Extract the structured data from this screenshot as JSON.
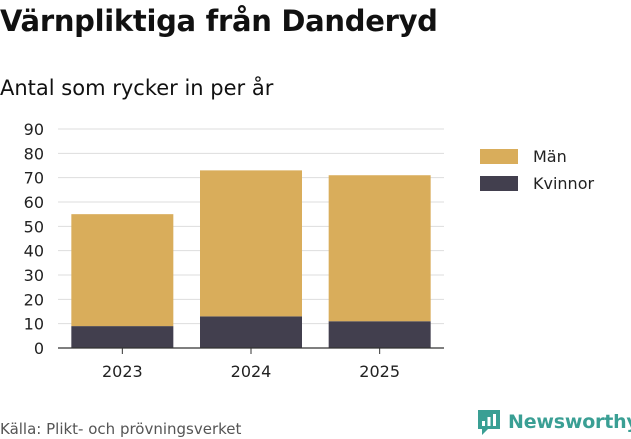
{
  "title": "Värnpliktiga från Danderyd",
  "subtitle": "Antal som rycker in per år",
  "source": "Källa: Plikt- och prövningsverket",
  "brand": {
    "name": "Newsworthy",
    "color": "#3a9f94",
    "icon": "newsworthy-logo-icon"
  },
  "chart_data": {
    "type": "bar",
    "stacked": true,
    "categories": [
      "2023",
      "2024",
      "2025"
    ],
    "series": [
      {
        "name": "Kvinnor",
        "values": [
          9,
          13,
          11
        ],
        "color": "#423f4e"
      },
      {
        "name": "Män",
        "values": [
          46,
          60,
          60
        ],
        "color": "#d9ad5b"
      }
    ],
    "totals": [
      55,
      73,
      71
    ],
    "title": "Värnpliktiga från Danderyd",
    "subtitle": "Antal som rycker in per år",
    "xlabel": "",
    "ylabel": "",
    "ylim": [
      0,
      90
    ],
    "yticks": [
      "0",
      "10",
      "20",
      "30",
      "40",
      "50",
      "60",
      "70",
      "80",
      "90"
    ],
    "grid": true,
    "legend": {
      "position": "right",
      "items": [
        "Män",
        "Kvinnor"
      ]
    }
  }
}
